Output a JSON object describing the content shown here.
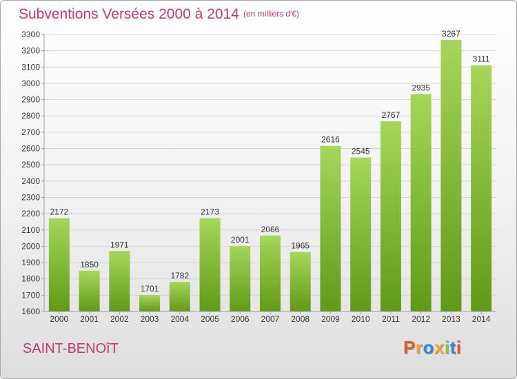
{
  "header": {
    "title": "Subventions Versées 2000 à 2014",
    "subtitle": "(en milliers d'€)"
  },
  "footer": {
    "commune": "SAINT-BENOîT",
    "logo_text": "Proxiti",
    "logo_colors": [
      "#e8552b",
      "#f2a12c",
      "#2f8ad8",
      "#f2a12c",
      "#8cc43f",
      "#2f8ad8",
      "#e8552b"
    ]
  },
  "colors": {
    "bar_light": "#a6d65a",
    "bar_dark": "#5f9a16",
    "grid": "#d4d4d4",
    "axis_text": "#333333",
    "title": "#c0396b"
  },
  "chart_data": {
    "type": "bar",
    "title": "Subventions Versées 2000 à 2014",
    "subtitle": "(en milliers d'€)",
    "categories": [
      "2000",
      "2001",
      "2002",
      "2003",
      "2004",
      "2005",
      "2006",
      "2007",
      "2008",
      "2009",
      "2010",
      "2011",
      "2012",
      "2013",
      "2014"
    ],
    "values": [
      2172,
      1850,
      1971,
      1701,
      1782,
      2173,
      2001,
      2066,
      1965,
      2616,
      2545,
      2767,
      2935,
      3267,
      3111
    ],
    "ylim": [
      1600,
      3300
    ],
    "yticks": [
      1600,
      1700,
      1800,
      1900,
      2000,
      2100,
      2200,
      2300,
      2400,
      2500,
      2600,
      2700,
      2800,
      2900,
      3000,
      3100,
      3200,
      3300
    ],
    "grid": true,
    "legend": "none"
  }
}
